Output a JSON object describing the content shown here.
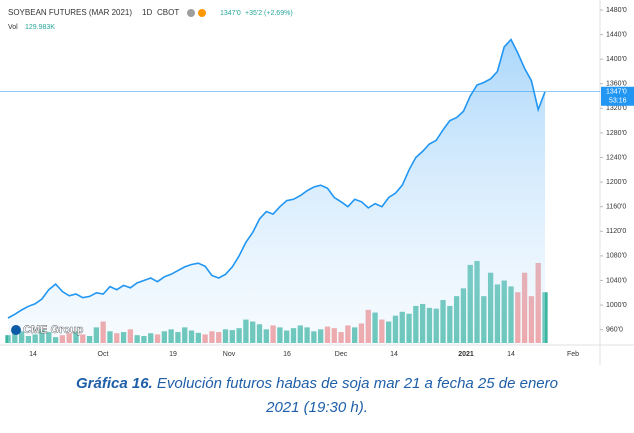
{
  "chart_data": {
    "type": "line",
    "title": "SOYBEAN FUTURES (MAR 2021)",
    "interval": "1D",
    "exchange": "CBOT",
    "last_price": {
      "value": 1347,
      "label": "1347'0"
    },
    "change": "+35'2 (+2.69%)",
    "countdown": "53:16",
    "volume_label": "Vol",
    "volume_value": "129.983K",
    "logo": "CME Group",
    "color": "#2196f3",
    "up_color": "#3bb4a0",
    "down_color": "#f28b8b",
    "ylim": [
      935,
      1480
    ],
    "yticks": [
      {
        "value": 960,
        "label": "960'0"
      },
      {
        "value": 1000,
        "label": "1000'0"
      },
      {
        "value": 1040,
        "label": "1040'0"
      },
      {
        "value": 1080,
        "label": "1080'0"
      },
      {
        "value": 1120,
        "label": "1120'0"
      },
      {
        "value": 1160,
        "label": "1160'0"
      },
      {
        "value": 1200,
        "label": "1200'0"
      },
      {
        "value": 1240,
        "label": "1240'0"
      },
      {
        "value": 1280,
        "label": "1280'0"
      },
      {
        "value": 1320,
        "label": "1320'0"
      },
      {
        "value": 1360,
        "label": "1360'0"
      },
      {
        "value": 1400,
        "label": "1400'0"
      },
      {
        "value": 1440,
        "label": "1440'0"
      },
      {
        "value": 1480,
        "label": "1480'0"
      }
    ],
    "xtick_labels": [
      "14",
      "Oct",
      "19",
      "Nov",
      "16",
      "Dec",
      "14",
      "2021",
      "14",
      "Feb"
    ],
    "series": [
      {
        "name": "Price",
        "values": [
          979,
          985,
          992,
          998,
          1002,
          1010,
          1025,
          1034,
          1022,
          1015,
          1018,
          1012,
          1014,
          1020,
          1018,
          1030,
          1025,
          1032,
          1028,
          1036,
          1040,
          1044,
          1038,
          1046,
          1050,
          1056,
          1062,
          1066,
          1068,
          1063,
          1048,
          1044,
          1050,
          1062,
          1080,
          1102,
          1118,
          1140,
          1152,
          1148,
          1160,
          1170,
          1172,
          1178,
          1186,
          1192,
          1195,
          1190,
          1175,
          1168,
          1160,
          1172,
          1168,
          1158,
          1165,
          1160,
          1175,
          1182,
          1195,
          1220,
          1240,
          1250,
          1262,
          1268,
          1285,
          1300,
          1305,
          1315,
          1340,
          1358,
          1362,
          1368,
          1380,
          1420,
          1432,
          1410,
          1385,
          1365,
          1318,
          1347
        ]
      },
      {
        "name": "Vol",
        "values": [
          20,
          25,
          30,
          18,
          22,
          35,
          28,
          15,
          20,
          25,
          30,
          22,
          18,
          40,
          55,
          30,
          25,
          28,
          35,
          20,
          18,
          25,
          22,
          30,
          35,
          28,
          40,
          32,
          26,
          22,
          30,
          28,
          35,
          33,
          38,
          60,
          55,
          48,
          35,
          45,
          40,
          32,
          38,
          45,
          40,
          30,
          35,
          42,
          38,
          28,
          45,
          40,
          50,
          85,
          78,
          60,
          55,
          70,
          80,
          75,
          95,
          100,
          90,
          88,
          110,
          95,
          120,
          140,
          200,
          210,
          120,
          180,
          150,
          160,
          145,
          130,
          180,
          120,
          205,
          130
        ]
      }
    ],
    "caption": {
      "label": "Gráfica 16.",
      "text": "Evolución futuros habas de soja mar 21 a fecha 25 de enero 2021 (19:30 h)."
    }
  }
}
